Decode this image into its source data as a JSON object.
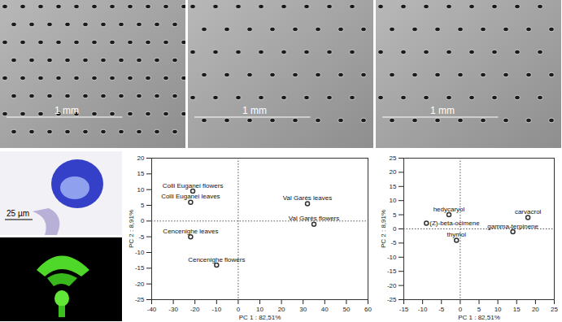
{
  "images": [
    {
      "scale_bar": "1 mm"
    },
    {
      "scale_bar": "1 mm"
    },
    {
      "scale_bar": "1 mm"
    },
    {
      "scale_bar": "25 µm"
    },
    {}
  ],
  "chart_data": [
    {
      "type": "scatter",
      "x_label": "PC 1 : 82,51%",
      "y_label": "PC 2 : 8,91%",
      "color": "#333333",
      "xlim": [
        -40,
        60
      ],
      "xticks": [
        -40,
        -30,
        -20,
        -10,
        0,
        10,
        20,
        30,
        40,
        50,
        60
      ],
      "ylim": [
        -25,
        20
      ],
      "yticks": [
        -25,
        -20,
        -15,
        -10,
        -5,
        0,
        5,
        10,
        15,
        20
      ],
      "labels": [
        "Colli Euganei flowers",
        "Colli Euganei leaves",
        "Val Garès leaves",
        "Val Garès flowers",
        "Cencenighe leaves",
        "Cencenighe flowers"
      ],
      "x": [
        -21,
        -22,
        32,
        35,
        -22,
        -10
      ],
      "values": [
        9.5,
        6,
        5.5,
        -1,
        -5,
        -14
      ]
    },
    {
      "type": "scatter",
      "x_label": "PC 1 : 82,51%",
      "y_label": "PC 2 : 8,91%",
      "color": "#333333",
      "xlim": [
        -15,
        25
      ],
      "xticks": [
        -15,
        -10,
        -5,
        0,
        5,
        10,
        15,
        20,
        25
      ],
      "ylim": [
        -25,
        25
      ],
      "yticks": [
        -25,
        -20,
        -15,
        -10,
        -5,
        0,
        5,
        10,
        15,
        20,
        25
      ],
      "labels": [
        "(Z)-beta-ocimene",
        "hedycaryol",
        "thymol",
        "gamma-terpinene",
        "carvacrol"
      ],
      "x": [
        -9,
        -3,
        -1,
        14,
        18
      ],
      "values": [
        2,
        5,
        -4,
        -1,
        4
      ]
    }
  ]
}
